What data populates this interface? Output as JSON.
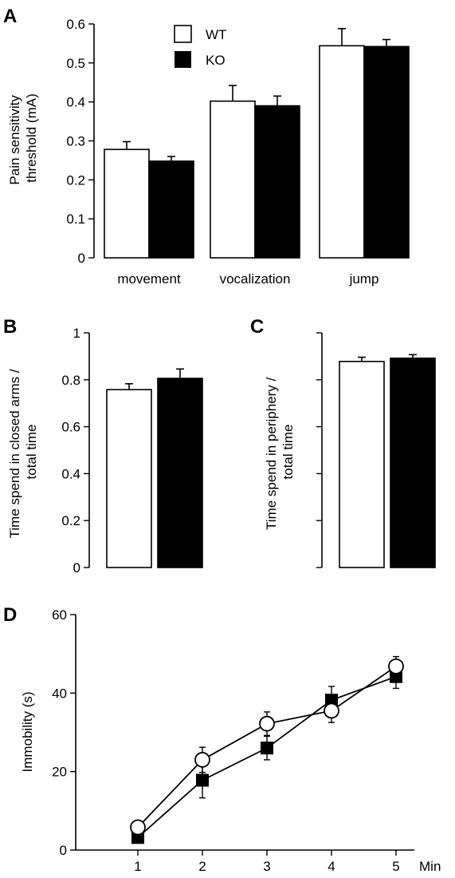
{
  "panels": {
    "a": "A",
    "b": "B",
    "c": "C",
    "d": "D"
  },
  "colors": {
    "wt_fill": "#ffffff",
    "ko_fill": "#000000",
    "stroke": "#000000"
  },
  "chart_data": [
    {
      "id": "A",
      "type": "bar",
      "categories": [
        "movement",
        "vocalization",
        "jump"
      ],
      "series": [
        {
          "name": "WT",
          "values": [
            0.278,
            0.402,
            0.544
          ],
          "errors": [
            0.02,
            0.04,
            0.044
          ]
        },
        {
          "name": "KO",
          "values": [
            0.248,
            0.39,
            0.542
          ],
          "errors": [
            0.012,
            0.025,
            0.018
          ]
        }
      ],
      "ylabel_lines": [
        "Pain sensitivity",
        "threshold (mA)"
      ],
      "ylim": [
        0,
        0.6
      ],
      "yticks": [
        "0",
        "0.1",
        "0.2",
        "0.3",
        "0.4",
        "0.5",
        "0.6"
      ],
      "legend_position": "top-left",
      "grid": false
    },
    {
      "id": "B",
      "type": "bar",
      "categories": [
        "WT",
        "KO"
      ],
      "values": [
        0.758,
        0.806
      ],
      "errors": [
        0.025,
        0.04
      ],
      "ylabel_lines": [
        "Time spend in closed arms /",
        "total time"
      ],
      "ylim": [
        0,
        1
      ],
      "yticks": [
        "0",
        "0.2",
        "0.4",
        "0.6",
        "0.8",
        "1"
      ],
      "grid": false
    },
    {
      "id": "C",
      "type": "bar",
      "categories": [
        "WT",
        "KO"
      ],
      "values": [
        0.878,
        0.892
      ],
      "errors": [
        0.018,
        0.015
      ],
      "ylabel_lines": [
        "Time spend in periphery /",
        "total time"
      ],
      "ylim": [
        0,
        1
      ],
      "grid": false
    },
    {
      "id": "D",
      "type": "line",
      "x": [
        1,
        2,
        3,
        4,
        5
      ],
      "xticks": [
        "1",
        "2",
        "3",
        "4",
        "5"
      ],
      "xunit": "Min",
      "series": [
        {
          "name": "WT",
          "marker": "circle",
          "values": [
            5.8,
            23,
            32.2,
            35.5,
            46.8
          ],
          "errors": [
            1.5,
            3.2,
            3,
            3,
            2.5
          ]
        },
        {
          "name": "KO",
          "marker": "square",
          "values": [
            3.2,
            17.8,
            26,
            38.2,
            44.2
          ],
          "errors": [
            1.2,
            4.5,
            3,
            3.5,
            3
          ]
        }
      ],
      "ylabel": "Immobility (s)",
      "ylim": [
        0,
        60
      ],
      "yticks": [
        "0",
        "20",
        "40",
        "60"
      ],
      "grid": false
    }
  ]
}
